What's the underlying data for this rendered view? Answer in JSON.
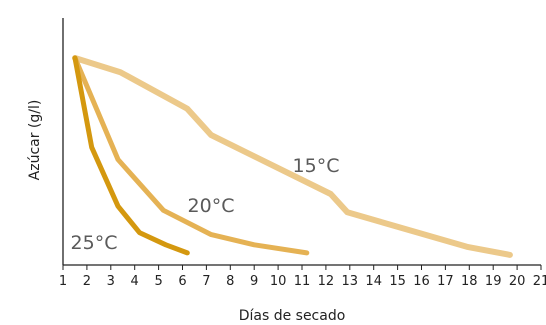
{
  "chart_data": {
    "type": "line",
    "xlabel": "Días de secado",
    "ylabel": "Azúcar (g/l)",
    "xlim": [
      1,
      21
    ],
    "ylim": [
      0,
      100
    ],
    "y_ticks_shown": false,
    "grid": false,
    "legend": "none (series labelled inline)",
    "x_ticks": [
      1,
      2,
      3,
      4,
      5,
      6,
      7,
      8,
      9,
      10,
      11,
      12,
      13,
      14,
      15,
      16,
      17,
      18,
      19,
      20,
      21
    ],
    "series": [
      {
        "name": "15°C",
        "color": "#ecc98a",
        "x": [
          1.5,
          3.4,
          6.2,
          7.2,
          12.2,
          12.9,
          17.9,
          19.7
        ],
        "y": [
          100,
          93,
          75,
          62,
          33,
          24,
          7,
          3
        ]
      },
      {
        "name": "20°C",
        "color": "#e5b254",
        "x": [
          1.5,
          3.3,
          5.2,
          7.2,
          9.0,
          11.2
        ],
        "y": [
          100,
          50,
          25,
          13,
          8,
          4
        ]
      },
      {
        "name": "25°C",
        "color": "#d4980f",
        "x": [
          1.5,
          2.2,
          3.3,
          4.2,
          5.3,
          6.2
        ],
        "y": [
          100,
          56,
          27,
          14,
          8,
          4
        ]
      }
    ]
  }
}
